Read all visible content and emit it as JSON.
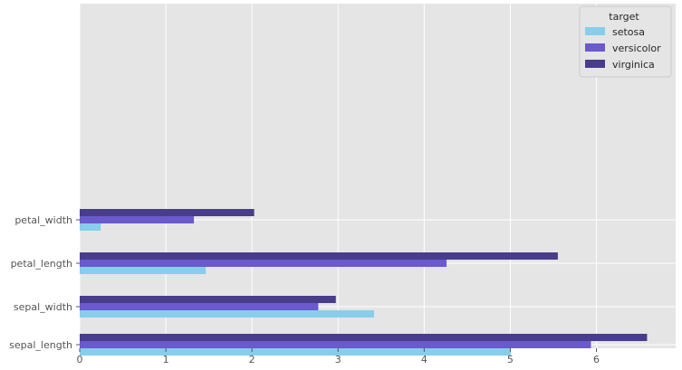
{
  "chart_data": {
    "type": "bar",
    "orientation": "horizontal",
    "categories": [
      "sepal_length",
      "sepal_width",
      "petal_length",
      "petal_width"
    ],
    "series": [
      {
        "name": "setosa",
        "values": [
          5.006,
          3.418,
          1.464,
          0.244
        ],
        "color": "#87ceeb"
      },
      {
        "name": "versicolor",
        "values": [
          5.936,
          2.77,
          4.26,
          1.326
        ],
        "color": "#6a5acd"
      },
      {
        "name": "virginica",
        "values": [
          6.588,
          2.974,
          5.552,
          2.026
        ],
        "color": "#483d8b"
      }
    ],
    "xticks": [
      0,
      1,
      2,
      3,
      4,
      5,
      6
    ],
    "xlim": [
      0,
      6.92
    ],
    "legend_title": "target",
    "legend_position": "top-right",
    "grid": true,
    "background": "#e5e5e5",
    "grid_color": "#ffffff"
  }
}
